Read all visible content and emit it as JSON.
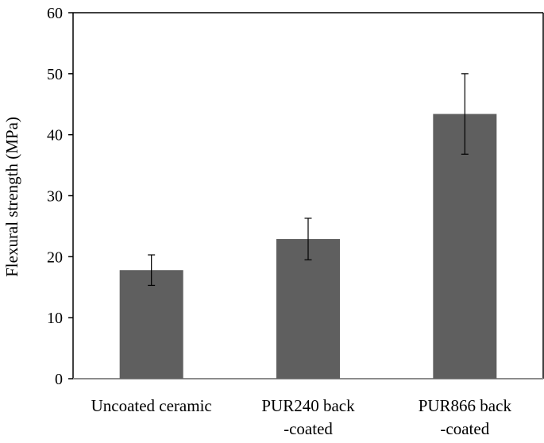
{
  "chart_data": {
    "type": "bar",
    "categories": [
      [
        "Uncoated ceramic"
      ],
      [
        "PUR240 back",
        "-coated"
      ],
      [
        "PUR866 back",
        "-coated"
      ]
    ],
    "values": [
      17.8,
      22.9,
      43.4
    ],
    "error": [
      2.5,
      3.4,
      6.6
    ],
    "title": "",
    "xlabel": "",
    "ylabel": "Flexural strength (MPa)",
    "ylim": [
      0,
      60
    ],
    "yticks": [
      0,
      10,
      20,
      30,
      40,
      50,
      60
    ],
    "grid": false,
    "legend": "none",
    "bar_color": "#5f5f5f",
    "axis_color": "#000000",
    "baseline_color": "#8c8c8c"
  }
}
